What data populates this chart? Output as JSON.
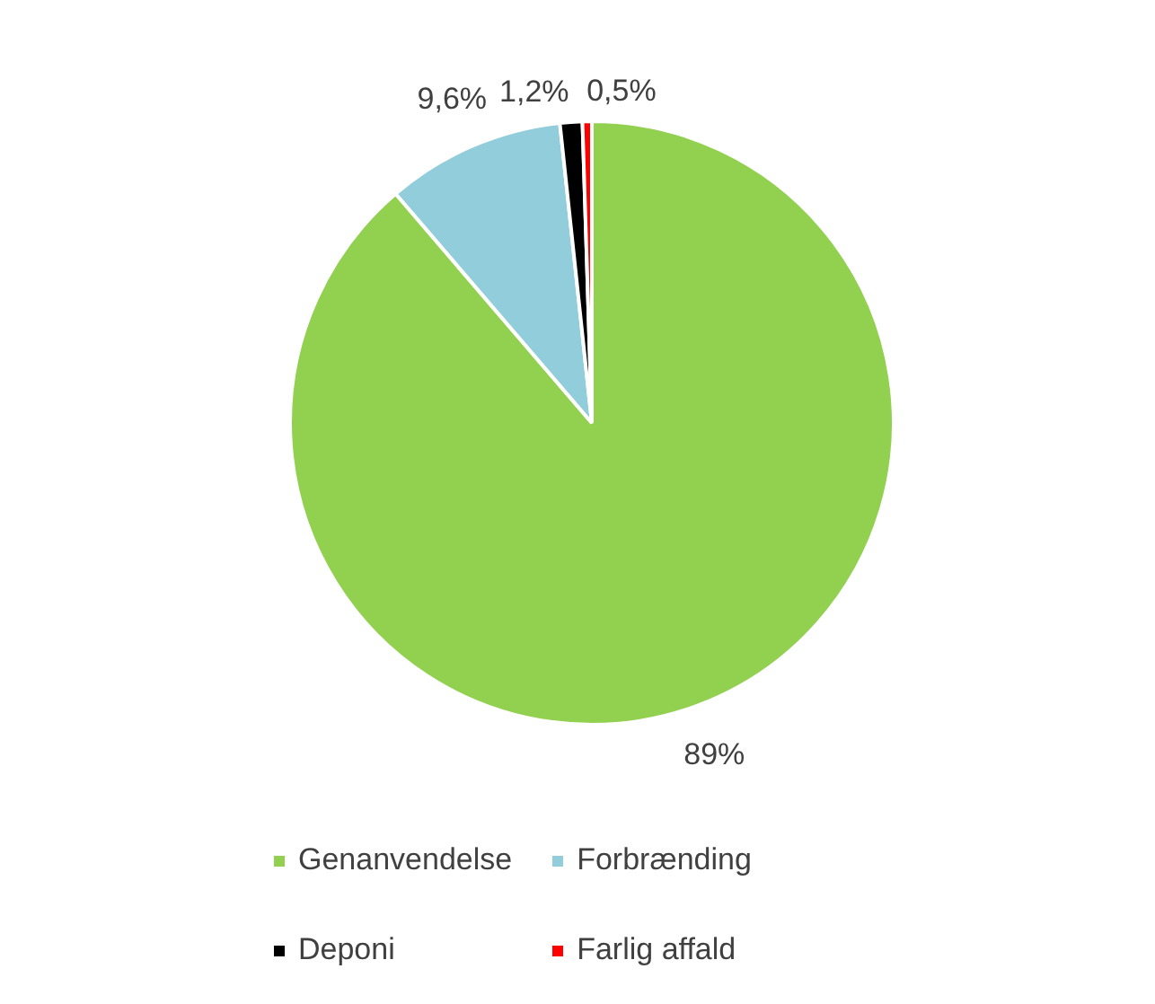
{
  "chart_data": {
    "type": "pie",
    "categories": [
      "Genanvendelse",
      "Forbrænding",
      "Deponi",
      "Farlig affald"
    ],
    "values": [
      89,
      9.6,
      1.2,
      0.5
    ],
    "colors": [
      "#92d050",
      "#92cddc",
      "#000000",
      "#ff0000"
    ],
    "value_labels": [
      "89%",
      "9,6%",
      "1,2%",
      "0,5%"
    ],
    "legend": "bottom"
  }
}
